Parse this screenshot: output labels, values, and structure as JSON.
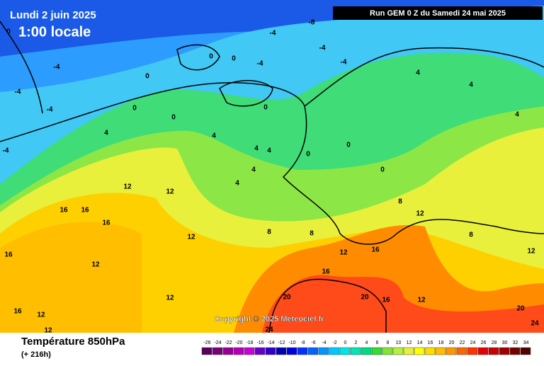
{
  "header": {
    "date": "Lundi 2 juin 2025",
    "time": "1:00 locale",
    "run": "Run GEM 0 Z du Samedi 24 mai 2025"
  },
  "map": {
    "copyright": "Copyright © 2025 Meteociel.fr",
    "contours": [
      0,
      -4,
      -4,
      -4,
      -4,
      -4,
      -4,
      -4,
      -4,
      -8,
      0,
      0,
      0,
      0,
      0,
      0,
      4,
      4,
      4,
      4,
      4,
      4,
      4,
      4,
      4,
      12,
      12,
      16,
      16,
      16,
      12,
      12,
      8,
      8,
      8,
      12,
      12,
      16,
      16,
      20,
      20,
      16,
      12,
      20,
      24,
      24,
      16,
      12,
      12,
      12,
      8,
      12,
      16,
      0,
      0,
      0
    ]
  },
  "footer": {
    "variable": "Température 850hPa",
    "lead": "(+ 216h)"
  },
  "legend": {
    "values": [
      -26,
      -24,
      -22,
      -20,
      -18,
      -16,
      -14,
      -12,
      -10,
      -8,
      -6,
      -4,
      -2,
      0,
      2,
      4,
      6,
      8,
      10,
      12,
      14,
      16,
      18,
      20,
      22,
      24,
      26,
      28,
      30,
      32,
      34
    ],
    "colors": [
      "#5a005a",
      "#780078",
      "#960096",
      "#b400b4",
      "#c800dc",
      "#6400c8",
      "#3200c8",
      "#0000b4",
      "#0000dc",
      "#0032ff",
      "#0064ff",
      "#0096ff",
      "#00c8ff",
      "#00e6e6",
      "#00e6b4",
      "#00dc82",
      "#32dc32",
      "#82e632",
      "#b4f03c",
      "#e6f03c",
      "#ffff00",
      "#ffdc00",
      "#ffbe00",
      "#ff9600",
      "#ff6400",
      "#ff3200",
      "#e60000",
      "#c80000",
      "#a00000",
      "#780000",
      "#500000"
    ]
  }
}
